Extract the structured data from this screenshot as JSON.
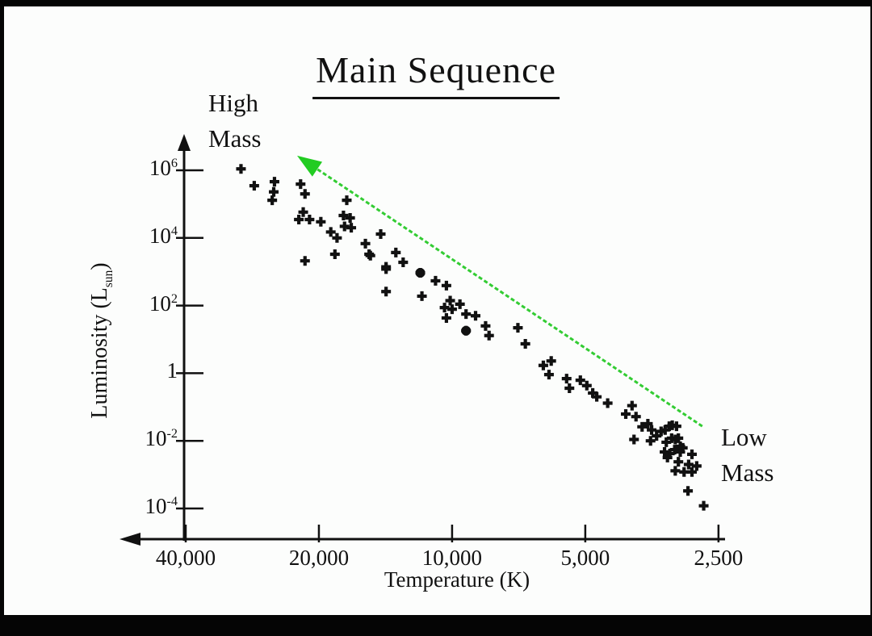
{
  "title": "Main Sequence",
  "annotations": {
    "high_mass_line1": "High",
    "high_mass_line2": "Mass",
    "low_mass_line1": "Low",
    "low_mass_line2": "Mass"
  },
  "axes": {
    "y_label_prefix": "Luminosity (L",
    "y_label_sub": "sun",
    "y_label_suffix": ")",
    "x_label": "Temperature (K)"
  },
  "colors": {
    "ink": "#111111",
    "arrow_line": "#33cc33",
    "arrow_head": "#22cc22",
    "background": "#fcfdfc"
  },
  "chart_data": {
    "type": "scatter",
    "title": "Main Sequence",
    "xlabel": "Temperature (K)",
    "ylabel": "Luminosity (Lsun)",
    "x_scale": "log",
    "x_reversed": true,
    "y_scale": "log",
    "xlim": [
      40000,
      2500
    ],
    "ylim": [
      0.0001,
      1000000.0
    ],
    "grid": false,
    "x_ticks": [
      {
        "label": "40,000",
        "value": 40000
      },
      {
        "label": "20,000",
        "value": 20000
      },
      {
        "label": "10,000",
        "value": 10000
      },
      {
        "label": "5,000",
        "value": 5000
      },
      {
        "label": "2,500",
        "value": 2500
      }
    ],
    "y_ticks": [
      {
        "base": "10",
        "exp": "6",
        "value": 1000000.0
      },
      {
        "base": "10",
        "exp": "4",
        "value": 10000.0
      },
      {
        "base": "10",
        "exp": "2",
        "value": 100.0
      },
      {
        "base": "1",
        "exp": "",
        "value": 1
      },
      {
        "base": "10",
        "exp": "-2",
        "value": 0.01
      },
      {
        "base": "10",
        "exp": "-4",
        "value": 0.0001
      }
    ],
    "arrow": {
      "meaning": "main sequence direction from low mass toward high mass",
      "from": [
        2720,
        0.027
      ],
      "to": [
        22400,
        2700000
      ]
    },
    "points": [
      [
        30000,
        1100000.0
      ],
      [
        28000,
        350000.0
      ],
      [
        25200,
        460000.0
      ],
      [
        25300,
        230000.0
      ],
      [
        25500,
        130000.0
      ],
      [
        22000,
        390000.0
      ],
      [
        21500,
        200000.0
      ],
      [
        17300,
        130000.0
      ],
      [
        21700,
        58000.0
      ],
      [
        22200,
        35000.0
      ],
      [
        21000,
        35000.0
      ],
      [
        19800,
        30000.0
      ],
      [
        17600,
        46000.0
      ],
      [
        17000,
        39000.0
      ],
      [
        17500,
        22000.0
      ],
      [
        16900,
        20000.0
      ],
      [
        18800,
        15000.0
      ],
      [
        18200,
        10000.0
      ],
      [
        14500,
        13000.0
      ],
      [
        15700,
        6800.0
      ],
      [
        15400,
        3300.0
      ],
      [
        18400,
        3300.0
      ],
      [
        21500,
        2100.0
      ],
      [
        14100,
        1400.0
      ],
      [
        15300,
        3000.0
      ],
      [
        13400,
        3700.0
      ],
      [
        12900,
        1900.0
      ],
      [
        14100,
        1200.0
      ],
      [
        11800,
        930,
        1
      ],
      [
        10900,
        540
      ],
      [
        10300,
        390
      ],
      [
        14100,
        260
      ],
      [
        11700,
        190
      ],
      [
        10100,
        140
      ],
      [
        10400,
        87
      ],
      [
        10000,
        78
      ],
      [
        9600,
        110
      ],
      [
        10300,
        43
      ],
      [
        9300,
        56
      ],
      [
        8850,
        50
      ],
      [
        8400,
        25
      ],
      [
        9300,
        18,
        1
      ],
      [
        8250,
        13
      ],
      [
        7100,
        22
      ],
      [
        6830,
        7.4
      ],
      [
        6220,
        1.7
      ],
      [
        5970,
        2.3
      ],
      [
        6040,
        0.91
      ],
      [
        5510,
        0.69
      ],
      [
        5130,
        0.62
      ],
      [
        5430,
        0.36
      ],
      [
        4960,
        0.43
      ],
      [
        4810,
        0.26
      ],
      [
        4710,
        0.2
      ],
      [
        4450,
        0.13
      ],
      [
        4050,
        0.062
      ],
      [
        3920,
        0.11
      ],
      [
        3840,
        0.052
      ],
      [
        3720,
        0.026
      ],
      [
        3610,
        0.032
      ],
      [
        3540,
        0.021
      ],
      [
        3450,
        0.014
      ],
      [
        3370,
        0.019
      ],
      [
        3300,
        0.021
      ],
      [
        3230,
        0.027
      ],
      [
        3180,
        0.029
      ],
      [
        3110,
        0.027
      ],
      [
        3280,
        0.0091
      ],
      [
        3190,
        0.012
      ],
      [
        3130,
        0.011
      ],
      [
        3080,
        0.012
      ],
      [
        3050,
        0.0069
      ],
      [
        3010,
        0.0062
      ],
      [
        3880,
        0.011
      ],
      [
        3560,
        0.01
      ],
      [
        3310,
        0.0047
      ],
      [
        3220,
        0.0042
      ],
      [
        3140,
        0.0055
      ],
      [
        3050,
        0.0047
      ],
      [
        3260,
        0.0032
      ],
      [
        3080,
        0.0024
      ],
      [
        2870,
        0.004
      ],
      [
        2920,
        0.002
      ],
      [
        2800,
        0.0018
      ],
      [
        3130,
        0.0013
      ],
      [
        2990,
        0.0012
      ],
      [
        2870,
        0.0012
      ],
      [
        2930,
        0.00033
      ],
      [
        2700,
        0.00012
      ]
    ]
  }
}
